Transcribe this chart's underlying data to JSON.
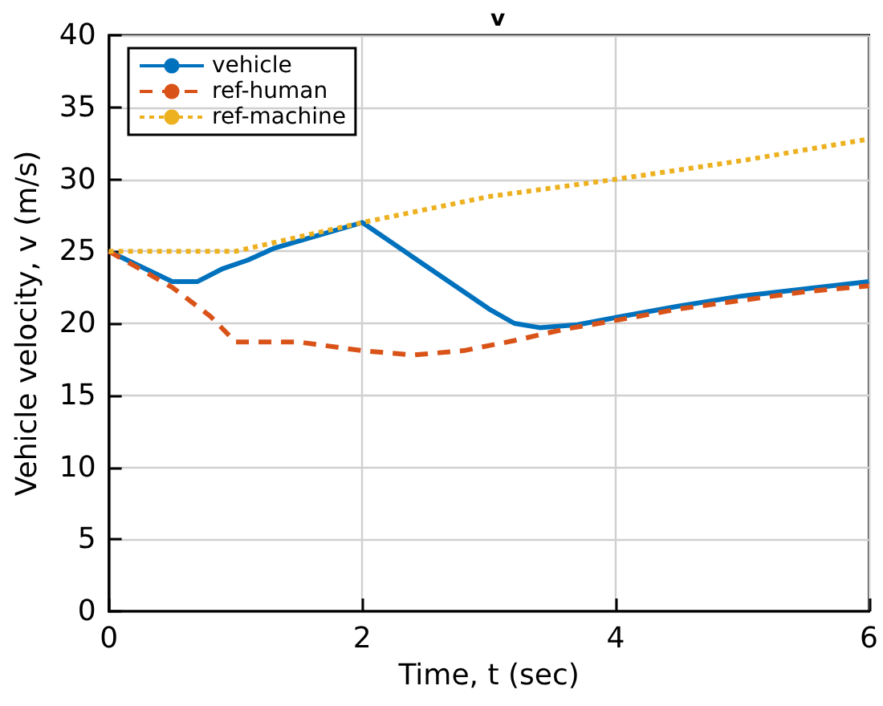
{
  "chart_data": {
    "type": "line",
    "title": "v",
    "xlabel": "Time, t (sec)",
    "ylabel": "Vehicle velocity, v (m/s)",
    "xlim": [
      0,
      6
    ],
    "xticks": [
      0,
      2,
      4,
      6
    ],
    "ylim": [
      0,
      40
    ],
    "yticks": [
      0,
      5,
      10,
      15,
      20,
      25,
      30,
      35,
      40
    ],
    "grid": true,
    "legend": "top left",
    "series": [
      {
        "name": "vehicle",
        "color": "#0072bd",
        "line_style": "solid",
        "x": [
          0,
          0.5,
          0.7,
          0.9,
          1.1,
          1.3,
          2,
          2.5,
          3,
          3.2,
          3.4,
          3.7,
          4,
          4.5,
          5,
          5.5,
          6
        ],
        "values": [
          25,
          22.9,
          22.9,
          23.8,
          24.4,
          25.2,
          27,
          24,
          21,
          20,
          19.7,
          19.9,
          20.4,
          21.2,
          21.9,
          22.4,
          22.9
        ]
      },
      {
        "name": "ref-human",
        "color": "#d95319",
        "line_style": "dashed",
        "x": [
          0,
          0.5,
          0.8,
          1,
          1.5,
          2,
          2.4,
          2.8,
          3.2,
          3.6,
          4,
          4.5,
          5,
          5.5,
          6
        ],
        "values": [
          25,
          22.5,
          20.5,
          18.7,
          18.7,
          18.1,
          17.8,
          18.1,
          18.8,
          19.6,
          20.2,
          21,
          21.6,
          22.2,
          22.6
        ]
      },
      {
        "name": "ref-machine",
        "color": "#edb120",
        "line_style": "dotted",
        "x": [
          0,
          1,
          1.3,
          2,
          3,
          4,
          5,
          6
        ],
        "values": [
          25,
          25,
          25.6,
          27,
          28.8,
          30,
          31.3,
          32.8
        ]
      }
    ]
  }
}
